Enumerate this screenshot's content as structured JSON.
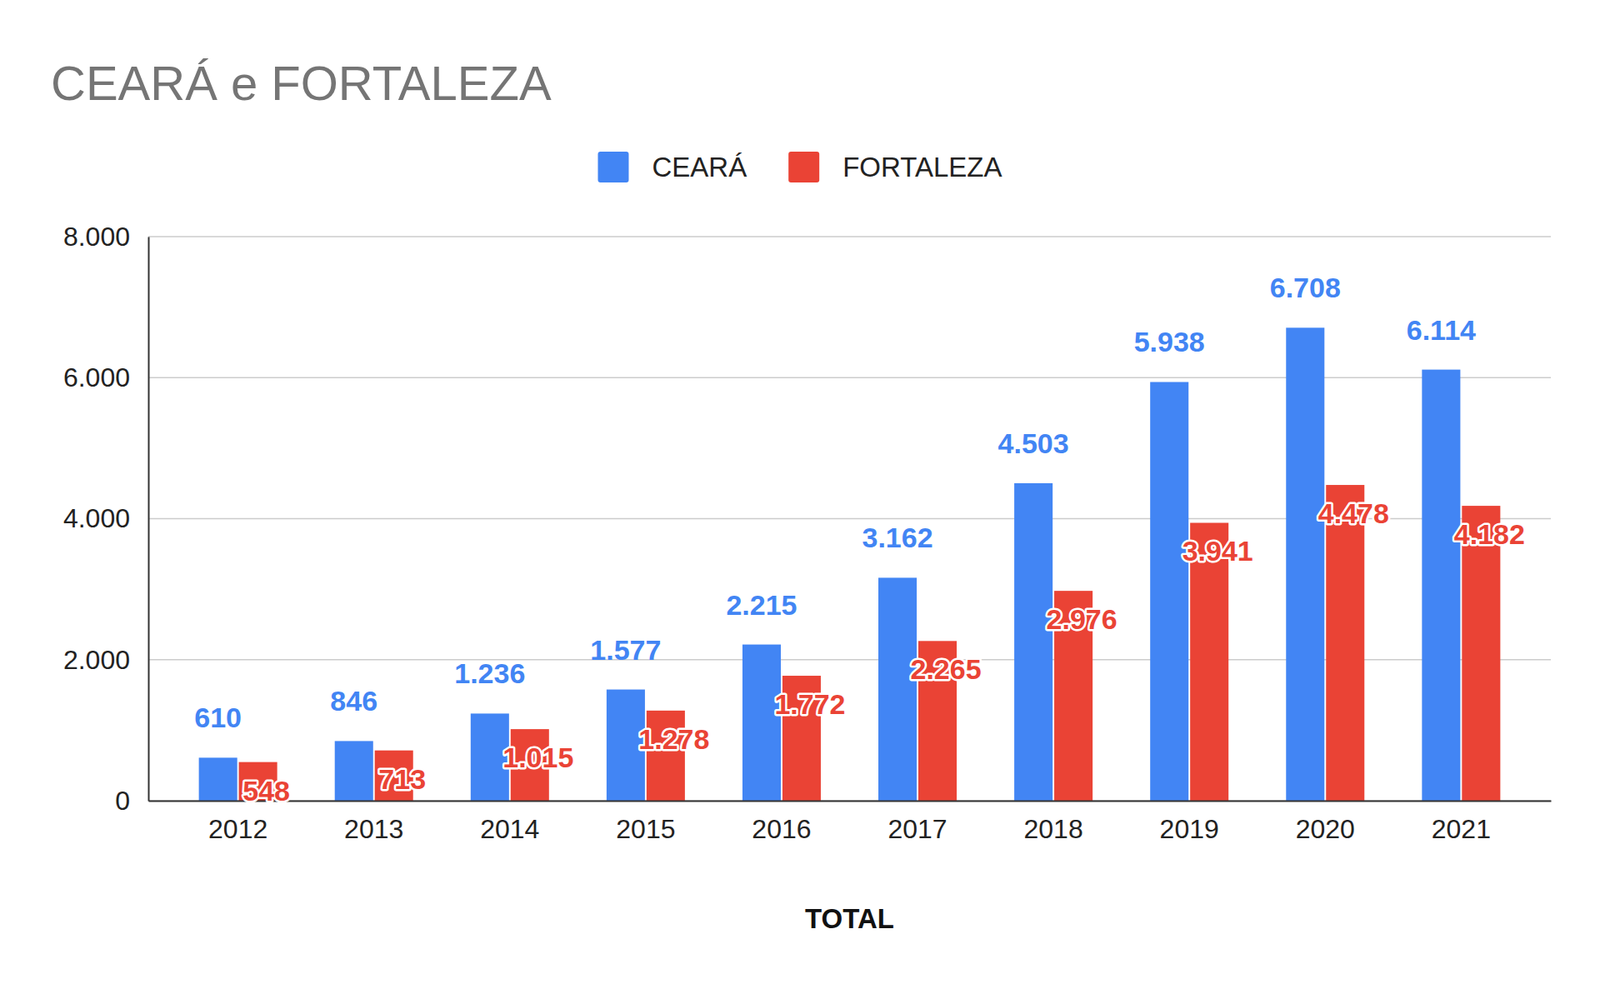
{
  "chart_data": {
    "type": "bar",
    "title": "CEARÁ e FORTALEZA",
    "x_label": "TOTAL",
    "categories": [
      "2012",
      "2013",
      "2014",
      "2015",
      "2016",
      "2017",
      "2018",
      "2019",
      "2020",
      "2021"
    ],
    "series": [
      {
        "name": "CEARÁ",
        "color": "#4285f4",
        "values": [
          610,
          846,
          1236,
          1577,
          2215,
          3162,
          4503,
          5938,
          6708,
          6114
        ],
        "value_labels": [
          "610",
          "846",
          "1.236",
          "1.577",
          "2.215",
          "3.162",
          "4.503",
          "5.938",
          "6.708",
          "6.114"
        ]
      },
      {
        "name": "FORTALEZA",
        "color": "#ea4335",
        "values": [
          548,
          713,
          1015,
          1278,
          1772,
          2265,
          2976,
          3941,
          4478,
          4182
        ],
        "value_labels": [
          "548",
          "713",
          "1.015",
          "1.278",
          "1.772",
          "2.265",
          "2.976",
          "3.941",
          "4.478",
          "4.182"
        ]
      }
    ],
    "ylim": [
      0,
      8000
    ],
    "yticks": [
      0,
      {
        "value": 2000,
        "label": "2.000"
      },
      {
        "value": 4000,
        "label": "4.000"
      },
      {
        "value": 6000,
        "label": "6.000"
      },
      {
        "value": 8000,
        "label": "8.000"
      }
    ],
    "grid": true,
    "legend": "top",
    "data_labels": true
  }
}
